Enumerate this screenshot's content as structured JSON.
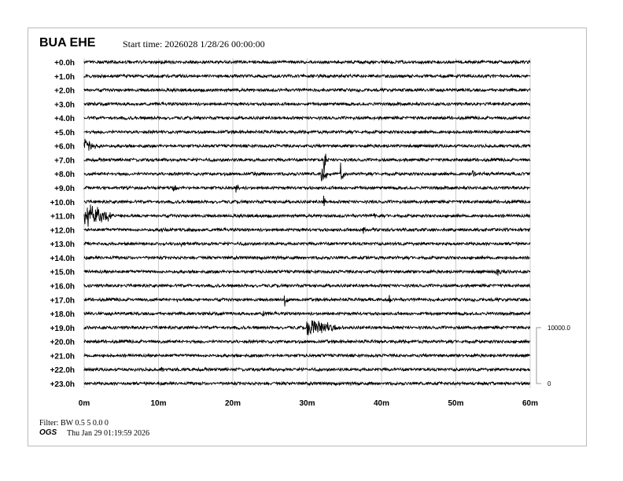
{
  "header": {
    "station": "BUA EHE",
    "start_time": "Start time: 2026028  1/28/26 00:00:00"
  },
  "footer": {
    "filter": "Filter: BW 0.5 5 0.0 0",
    "org": "OGS",
    "generated": "Thu Jan 29 01:19:59 2026"
  },
  "chart_data": {
    "type": "line",
    "title": "",
    "row_labels": [
      "+0.0h",
      "+1.0h",
      "+2.0h",
      "+3.0h",
      "+4.0h",
      "+5.0h",
      "+6.0h",
      "+7.0h",
      "+8.0h",
      "+9.0h",
      "+10.0h",
      "+11.0h",
      "+12.0h",
      "+13.0h",
      "+14.0h",
      "+15.0h",
      "+16.0h",
      "+17.0h",
      "+18.0h",
      "+19.0h",
      "+20.0h",
      "+21.0h",
      "+22.0h",
      "+23.0h"
    ],
    "x_ticks": [
      "0m",
      "10m",
      "20m",
      "30m",
      "40m",
      "50m",
      "60m"
    ],
    "xlim": [
      0,
      60
    ],
    "grid": true,
    "scale": {
      "top_label": "10000.0",
      "bottom_label": "0"
    },
    "trace_color": "#000000",
    "grid_color": "#cccccc",
    "events": [
      {
        "hour": 6,
        "minute": 0,
        "duration": 2.5,
        "amplitude": 12
      },
      {
        "hour": 7,
        "minute": 32.3,
        "duration": 0.3,
        "amplitude": 28
      },
      {
        "hour": 8,
        "minute": 23,
        "duration": 0.4,
        "amplitude": 5
      },
      {
        "hour": 8,
        "minute": 32,
        "duration": 0.8,
        "amplitude": 18
      },
      {
        "hour": 8,
        "minute": 34.5,
        "duration": 0.7,
        "amplitude": 15
      },
      {
        "hour": 8,
        "minute": 52.3,
        "duration": 0.6,
        "amplitude": 8
      },
      {
        "hour": 9,
        "minute": 12,
        "duration": 0.6,
        "amplitude": 7
      },
      {
        "hour": 9,
        "minute": 20.5,
        "duration": 0.8,
        "amplitude": 7
      },
      {
        "hour": 10,
        "minute": 32.3,
        "duration": 0.2,
        "amplitude": 10
      },
      {
        "hour": 11,
        "minute": 0,
        "duration": 5,
        "amplitude": 20
      },
      {
        "hour": 11,
        "minute": 39,
        "duration": 0.6,
        "amplitude": 5
      },
      {
        "hour": 12,
        "minute": 10.5,
        "duration": 0.6,
        "amplitude": 5
      },
      {
        "hour": 12,
        "minute": 15,
        "duration": 0.4,
        "amplitude": 4
      },
      {
        "hour": 12,
        "minute": 37.5,
        "duration": 0.8,
        "amplitude": 8
      },
      {
        "hour": 13,
        "minute": 13,
        "duration": 0.6,
        "amplitude": 4
      },
      {
        "hour": 14,
        "minute": 38,
        "duration": 0.5,
        "amplitude": 3
      },
      {
        "hour": 15,
        "minute": 55.5,
        "duration": 0.8,
        "amplitude": 8
      },
      {
        "hour": 17,
        "minute": 12.5,
        "duration": 0.5,
        "amplitude": 4
      },
      {
        "hour": 17,
        "minute": 27,
        "duration": 0.6,
        "amplitude": 9
      },
      {
        "hour": 17,
        "minute": 38.5,
        "duration": 0.4,
        "amplitude": 5
      },
      {
        "hour": 17,
        "minute": 41,
        "duration": 0.3,
        "amplitude": 7
      },
      {
        "hour": 18,
        "minute": 24,
        "duration": 0.7,
        "amplitude": 7
      },
      {
        "hour": 19,
        "minute": 30,
        "duration": 5,
        "amplitude": 17
      },
      {
        "hour": 22,
        "minute": 10.5,
        "duration": 0.2,
        "amplitude": 4
      }
    ]
  }
}
